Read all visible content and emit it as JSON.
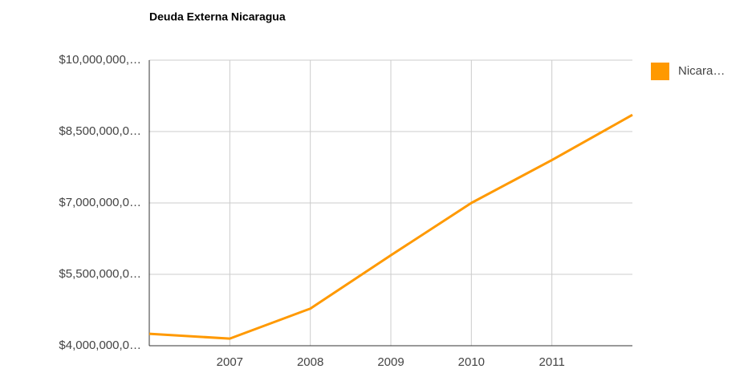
{
  "chart_data": {
    "type": "line",
    "title": "Deuda Externa Nicaragua",
    "x": [
      2006,
      2007,
      2008,
      2009,
      2010,
      2011,
      2012
    ],
    "series": [
      {
        "name": "Nicara…",
        "color": "#ff9900",
        "values": [
          4250000,
          4150000,
          4780000,
          5900000,
          7000000,
          7900000,
          8850000
        ]
      }
    ],
    "xlim": [
      2006,
      2012
    ],
    "xticks": [
      2007,
      2008,
      2009,
      2010,
      2011
    ],
    "ylim": [
      4000000,
      10000000
    ],
    "yticks": [
      {
        "value": 4000000,
        "label": "$4,000,000,0…"
      },
      {
        "value": 5500000,
        "label": "$5,500,000,0…"
      },
      {
        "value": 7000000,
        "label": "$7,000,000,0…"
      },
      {
        "value": 8500000,
        "label": "$8,500,000,0…"
      },
      {
        "value": 10000000,
        "label": "$10,000,000,…"
      }
    ],
    "grid": true,
    "legend": "right"
  }
}
